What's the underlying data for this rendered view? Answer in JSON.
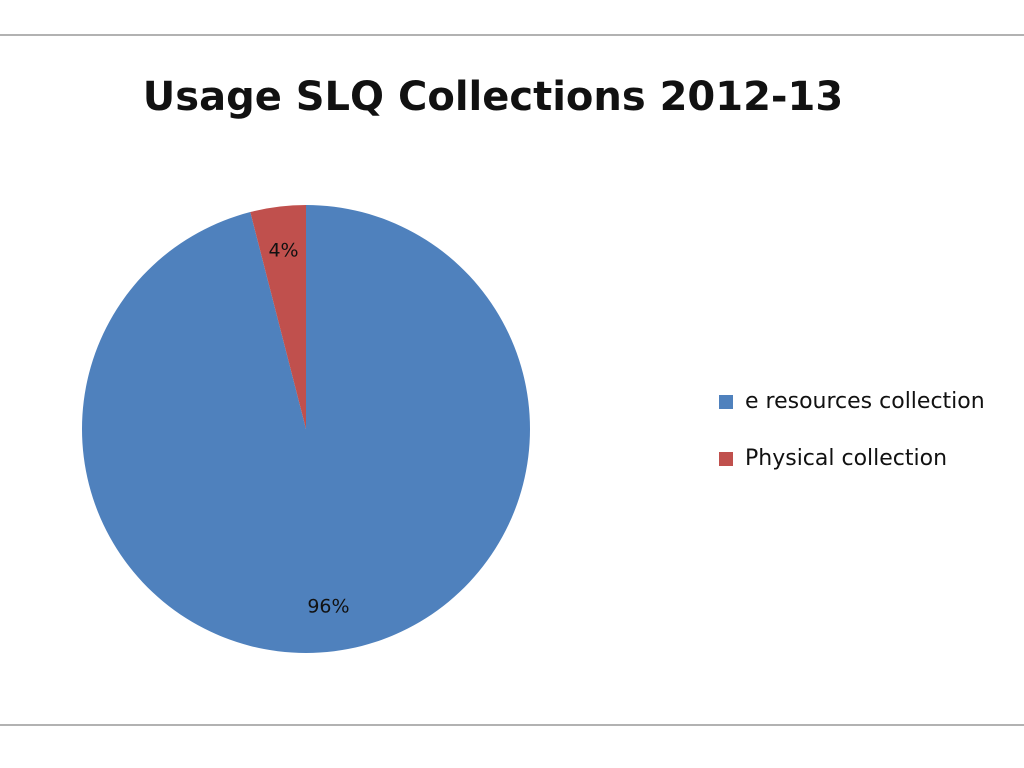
{
  "chart_data": {
    "type": "pie",
    "title": "Usage SLQ Collections 2012-13",
    "categories": [
      "e resources collection",
      "Physical collection"
    ],
    "values": [
      96,
      4
    ],
    "value_labels": [
      "96%",
      "4%"
    ],
    "colors": [
      "#4f81bd",
      "#c0504d"
    ],
    "legend": "right"
  }
}
